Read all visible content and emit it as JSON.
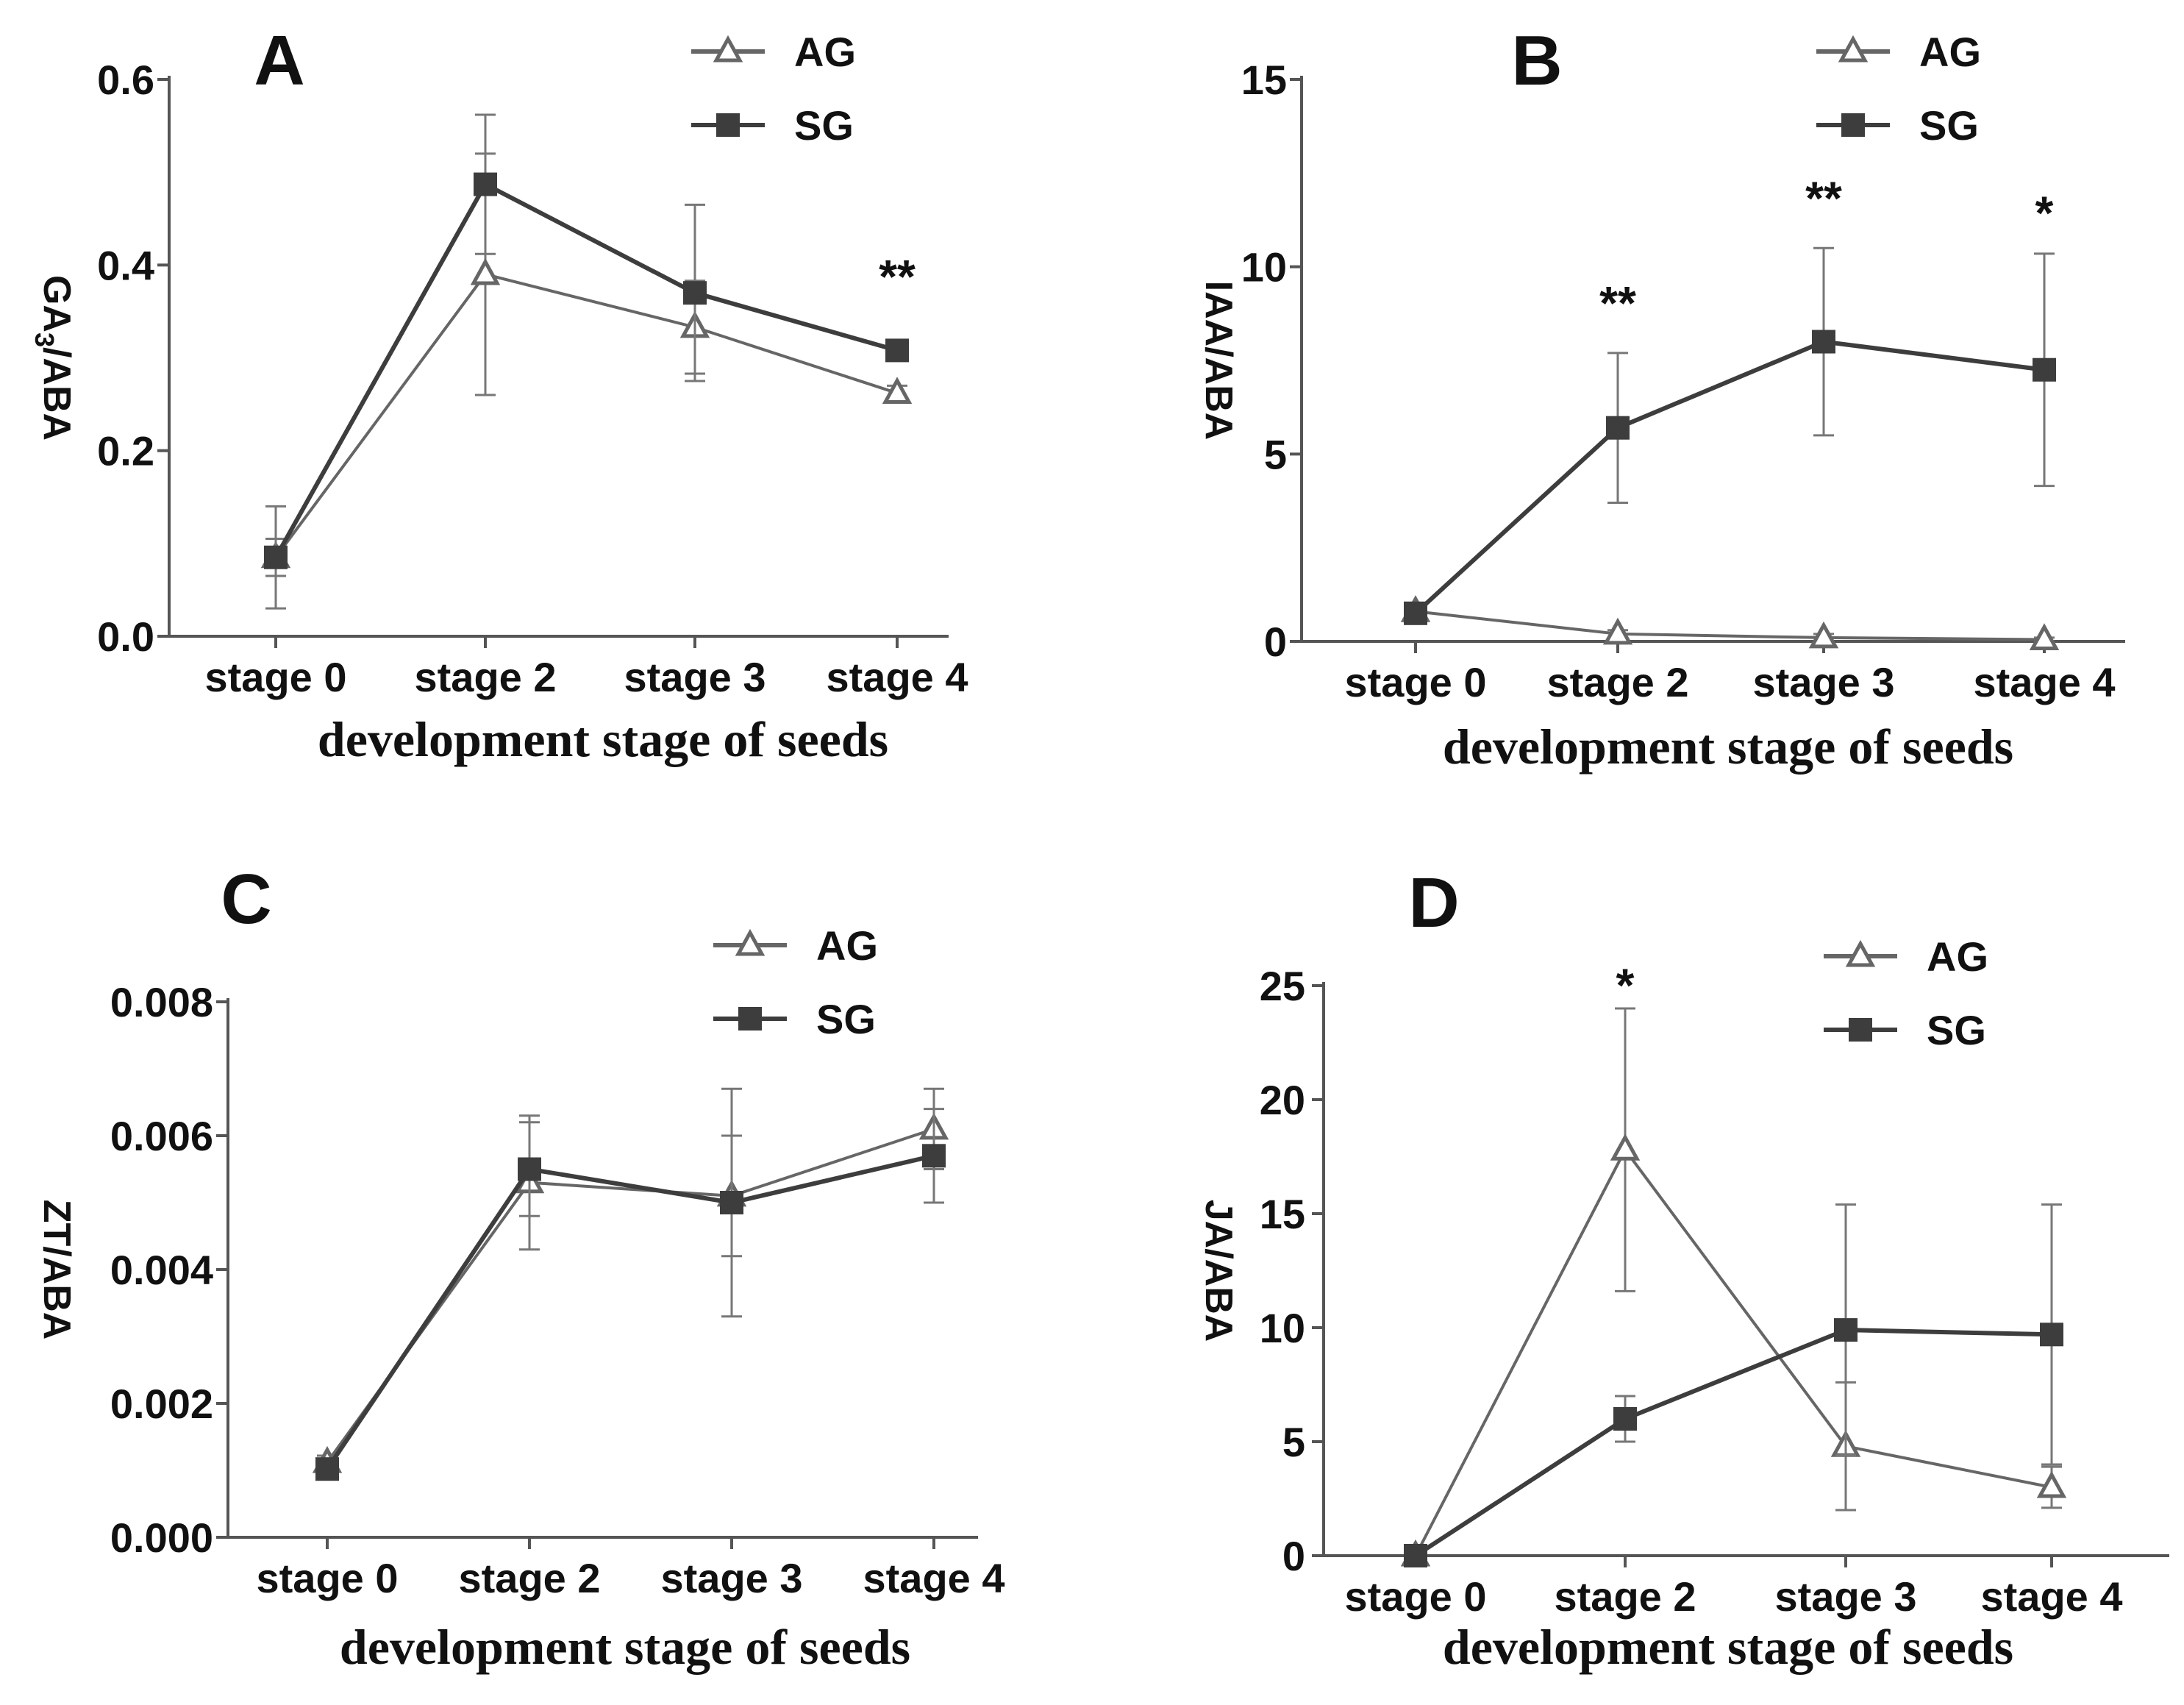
{
  "colors": {
    "AG": "#666666",
    "SG": "#3d3d3d",
    "axis": "#555555",
    "text": "#111111"
  },
  "chart_data": [
    {
      "type": "line",
      "panel": "A",
      "title": "",
      "xlabel": "development stage of seeds",
      "ylabel_main": "GA",
      "ylabel_sub": "3",
      "ylabel_tail": "/ABA",
      "categories": [
        "stage 0",
        "stage 2",
        "stage 3",
        "stage 4"
      ],
      "ylim": [
        0,
        0.6
      ],
      "yticks": [
        "0.0",
        "0.2",
        "0.4",
        "0.6"
      ],
      "grid": false,
      "legend_position": "top-right",
      "series": [
        {
          "name": "AG",
          "marker": "triangle-open",
          "values": [
            0.085,
            0.39,
            0.333,
            0.262
          ],
          "err": [
            0.055,
            0.13,
            0.05,
            0.008
          ]
        },
        {
          "name": "SG",
          "marker": "square-filled",
          "values": [
            0.085,
            0.487,
            0.37,
            0.308
          ],
          "err": [
            0.02,
            0.075,
            0.095,
            0.008
          ]
        }
      ],
      "annotations": [
        {
          "text": "**",
          "category": "stage 4",
          "y": 0.37
        }
      ]
    },
    {
      "type": "line",
      "panel": "B",
      "title": "",
      "xlabel": "development stage of seeds",
      "ylabel_main": "IAA/ABA",
      "ylabel_sub": "",
      "ylabel_tail": "",
      "categories": [
        "stage 0",
        "stage 2",
        "stage 3",
        "stage 4"
      ],
      "ylim": [
        0,
        15
      ],
      "yticks": [
        "0",
        "5",
        "10",
        "15"
      ],
      "grid": false,
      "legend_position": "top-right",
      "series": [
        {
          "name": "AG",
          "marker": "triangle-open",
          "values": [
            0.8,
            0.2,
            0.1,
            0.05
          ],
          "err": [
            0.1,
            0.1,
            0.1,
            0.05
          ]
        },
        {
          "name": "SG",
          "marker": "square-filled",
          "values": [
            0.75,
            5.7,
            8.0,
            7.25
          ],
          "err": [
            0.1,
            2.0,
            2.5,
            3.1
          ]
        }
      ],
      "annotations": [
        {
          "text": "**",
          "category": "stage 2",
          "y": 8.6
        },
        {
          "text": "**",
          "category": "stage 3",
          "y": 11.4
        },
        {
          "text": "*",
          "category": "stage 4",
          "y": 11.0
        }
      ]
    },
    {
      "type": "line",
      "panel": "C",
      "title": "",
      "xlabel": "development stage of seeds",
      "ylabel_main": "ZT/ABA",
      "ylabel_sub": "",
      "ylabel_tail": "",
      "categories": [
        "stage 0",
        "stage 2",
        "stage 3",
        "stage 4"
      ],
      "ylim": [
        0,
        0.008
      ],
      "yticks": [
        "0.000",
        "0.002",
        "0.004",
        "0.006",
        "0.008"
      ],
      "grid": false,
      "legend_position": "top-right",
      "series": [
        {
          "name": "AG",
          "marker": "triangle-open",
          "values": [
            0.00112,
            0.0053,
            0.0051,
            0.0061
          ],
          "err": [
            0.0001,
            0.001,
            0.0009,
            0.0006
          ]
        },
        {
          "name": "SG",
          "marker": "square-filled",
          "values": [
            0.00102,
            0.0055,
            0.005,
            0.0057
          ],
          "err": [
            0.0001,
            0.0007,
            0.0017,
            0.0007
          ]
        }
      ],
      "annotations": []
    },
    {
      "type": "line",
      "panel": "D",
      "title": "",
      "xlabel": "development stage of seeds",
      "ylabel_main": "JA/ABA",
      "ylabel_sub": "",
      "ylabel_tail": "",
      "categories": [
        "stage 0",
        "stage 2",
        "stage 3",
        "stage 4"
      ],
      "ylim": [
        0,
        25
      ],
      "yticks": [
        "0",
        "5",
        "10",
        "15",
        "20",
        "25"
      ],
      "grid": false,
      "legend_position": "top-right",
      "series": [
        {
          "name": "AG",
          "marker": "triangle-open",
          "values": [
            0.0,
            17.8,
            4.8,
            3.0
          ],
          "err": [
            0.0,
            6.2,
            2.8,
            0.9
          ]
        },
        {
          "name": "SG",
          "marker": "square-filled",
          "values": [
            0.0,
            6.0,
            9.9,
            9.7
          ],
          "err": [
            0.0,
            1.0,
            5.5,
            5.7
          ]
        }
      ],
      "annotations": [
        {
          "text": "*",
          "category": "stage 2",
          "y": 24.3
        }
      ]
    }
  ]
}
